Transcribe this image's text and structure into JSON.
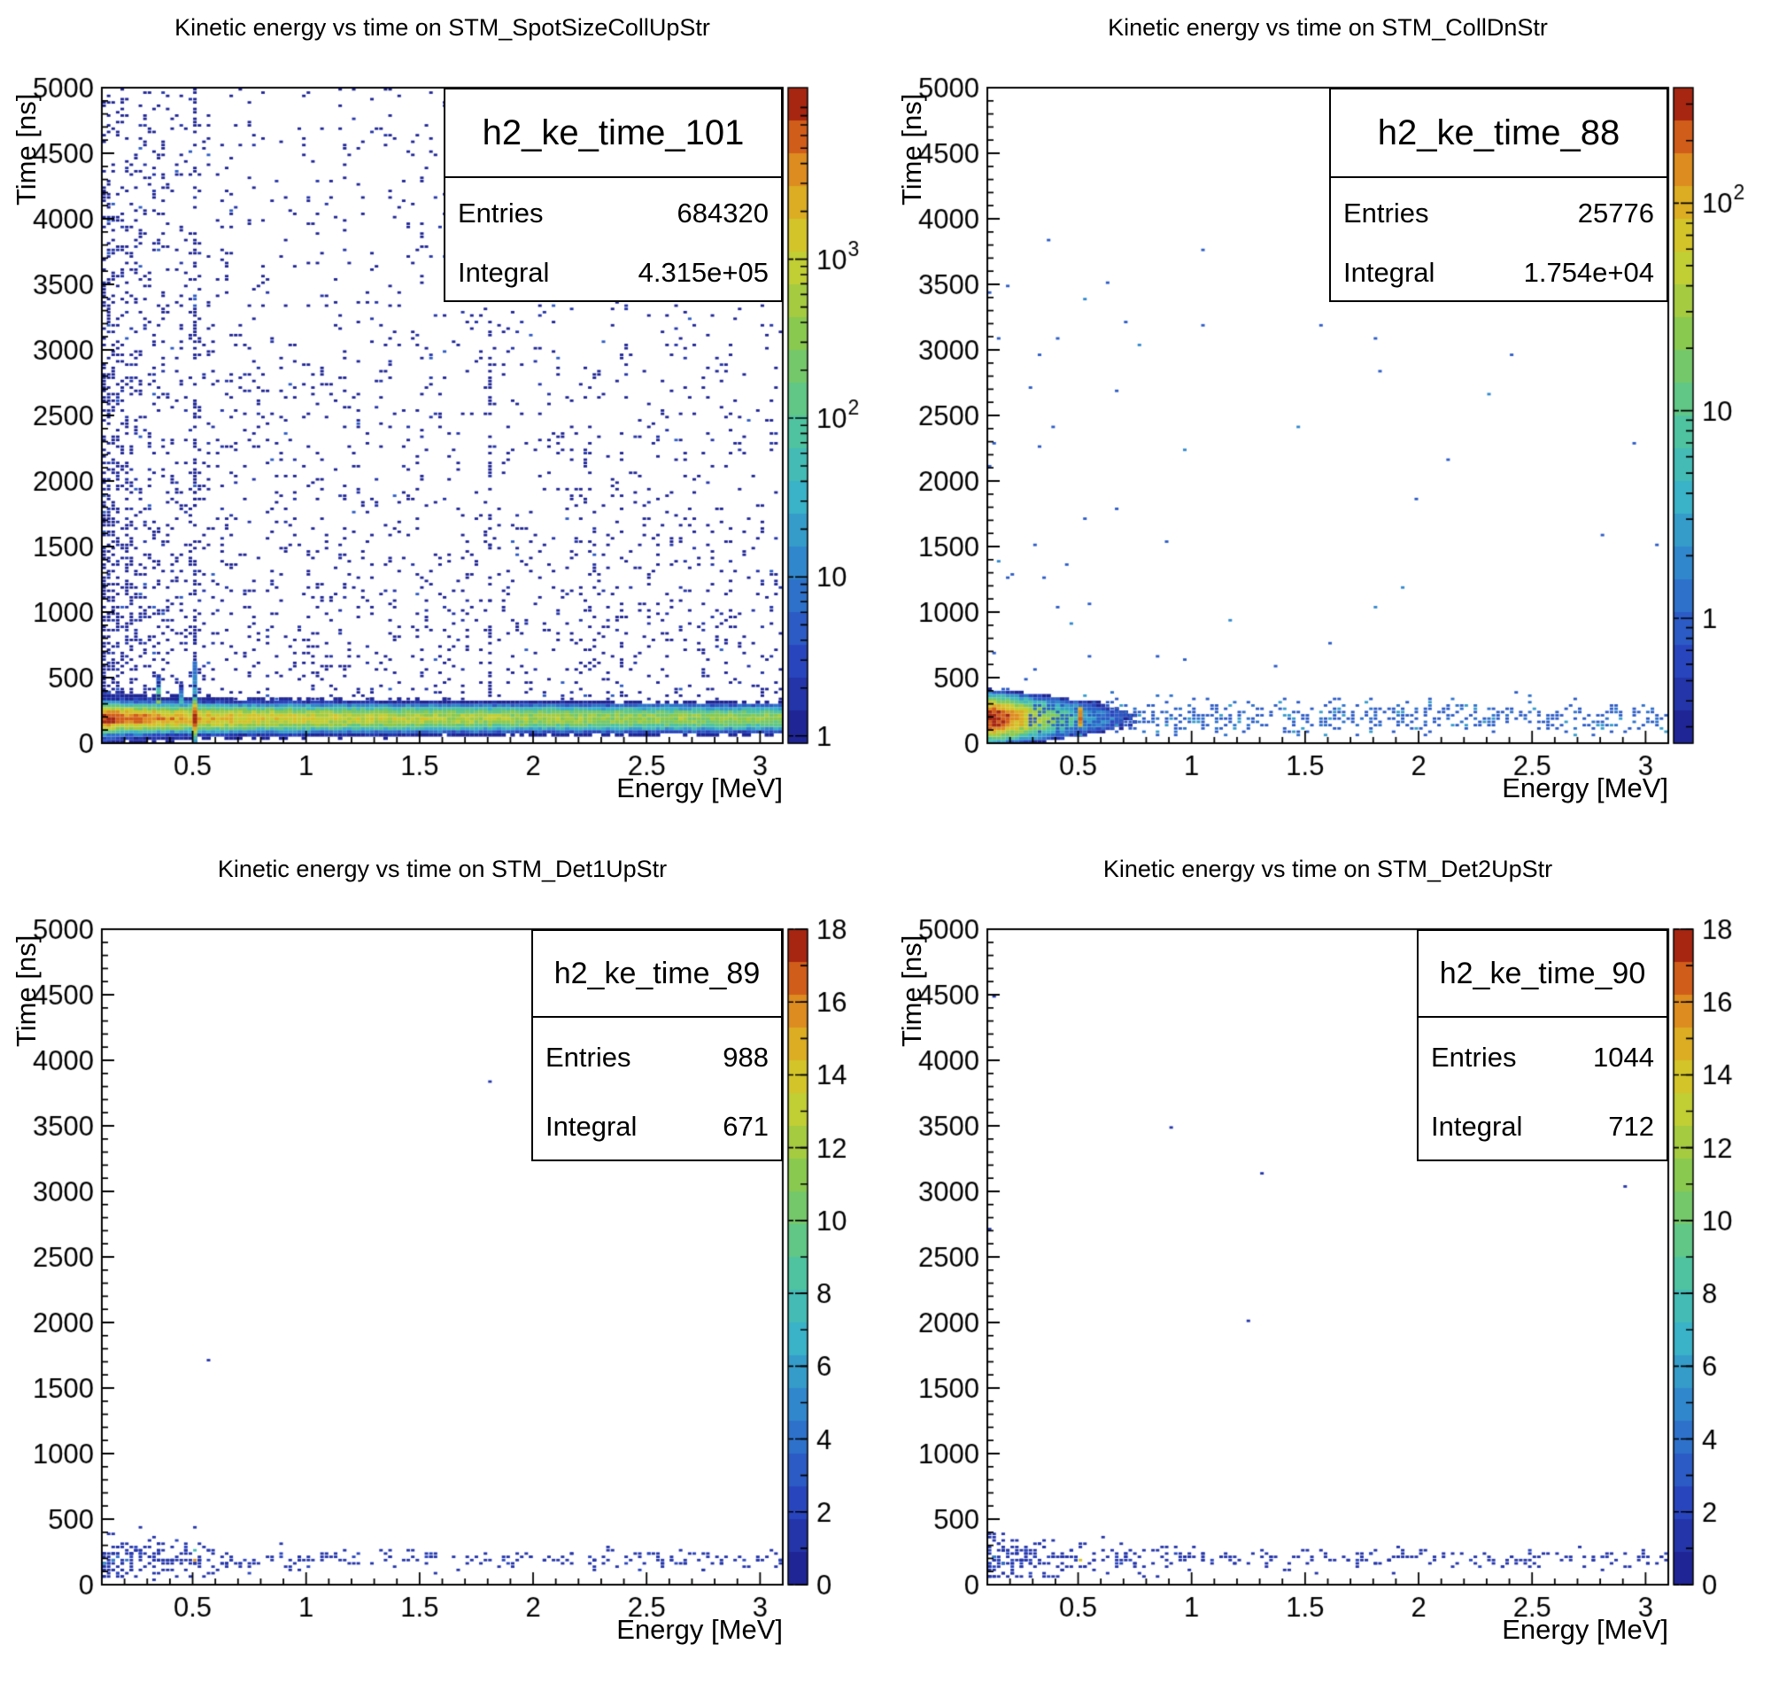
{
  "figure": {
    "background": "#ffffff",
    "frame_color": "#000000",
    "text_color": "#000000",
    "palette_name": "root-rainbow",
    "palette_stops": [
      [
        0.0,
        "#1c1d8a"
      ],
      [
        0.13,
        "#2a47c0"
      ],
      [
        0.25,
        "#2f7ccd"
      ],
      [
        0.38,
        "#3ab4c8"
      ],
      [
        0.5,
        "#55c794"
      ],
      [
        0.63,
        "#8cc94c"
      ],
      [
        0.75,
        "#cfcf2e"
      ],
      [
        0.83,
        "#ddab22"
      ],
      [
        0.9,
        "#dd7a1d"
      ],
      [
        0.96,
        "#c03515"
      ],
      [
        1.0,
        "#7a0e0c"
      ]
    ],
    "n_contour_levels": 20
  },
  "chart_data": [
    {
      "id": "top_left",
      "type": "heatmap",
      "title": "Kinetic energy vs time on STM_SpotSizeCollUpStr",
      "hist_name": "h2_ke_time_101",
      "stats": {
        "entries_label": "Entries",
        "entries": "684320",
        "integral_label": "Integral",
        "integral": "4.315e+05"
      },
      "x_axis": {
        "title": "Energy [MeV]",
        "min": 0.1,
        "max": 3.1,
        "tick_values": [
          0.5,
          1,
          1.5,
          2,
          2.5,
          3
        ],
        "tick_labels": [
          "0.5",
          "1",
          "1.5",
          "2",
          "2.5",
          "3"
        ],
        "minor_step": 0.1
      },
      "y_axis": {
        "title": "Time [ns]",
        "min": 0,
        "max": 5000,
        "tick_values": [
          0,
          500,
          1000,
          1500,
          2000,
          2500,
          3000,
          3500,
          4000,
          4500,
          5000
        ],
        "tick_labels": [
          "0",
          "500",
          "1000",
          "1500",
          "2000",
          "2500",
          "3000",
          "3500",
          "4000",
          "4500",
          "5000"
        ],
        "minor_step": 100
      },
      "z_axis": {
        "scale": "log",
        "min": 0.9,
        "max": 12000,
        "tick_labels": [
          {
            "text": "1",
            "value": 1
          },
          {
            "text": "10",
            "value": 10
          },
          {
            "text": "10",
            "sup": "2",
            "value": 100
          },
          {
            "text": "10",
            "sup": "3",
            "value": 1000
          }
        ]
      },
      "content": {
        "type": "dense-band",
        "seed": 11,
        "band": {
          "t_center_ns": 190,
          "t_sigma_ns": 33,
          "peak_coeff": 1100,
          "peak_exponent": -1.05,
          "peak_cap": 11500,
          "tail_frac": 0.004,
          "tail_sigma_ns": 70
        },
        "vertical_lines": [
          {
            "energy_mev": 0.511,
            "kind": "annihilation-line",
            "core_amp": 12000,
            "core_sigma_ns": 45,
            "mid_amp": 40,
            "mid_sigma_ns": 130,
            "fade_amp": 30,
            "dash_prob": 0.45
          },
          {
            "energy_mev": 0.35,
            "kind": "spike",
            "amp": 900,
            "sigma_ns": 90
          },
          {
            "energy_mev": 0.445,
            "kind": "spike",
            "amp": 150,
            "sigma_ns": 80
          },
          {
            "energy_mev": 1.8,
            "kind": "dashed",
            "dash_prob": 0.3,
            "t_max_ns": 4200,
            "value": 1
          }
        ],
        "scatter": {
          "p_base": 0.07,
          "e_boost": 6,
          "e_scale": 0.18,
          "t_base": 0.5,
          "t_amp": 1.3,
          "t_scale": 2200,
          "t_min_ns": 340
        }
      }
    },
    {
      "id": "top_right",
      "type": "heatmap",
      "title": "Kinetic energy vs time on STM_CollDnStr",
      "hist_name": "h2_ke_time_88",
      "stats": {
        "entries_label": "Entries",
        "entries": "25776",
        "integral_label": "Integral",
        "integral": "1.754e+04"
      },
      "x_axis": {
        "title": "Energy [MeV]",
        "min": 0.1,
        "max": 3.1,
        "tick_values": [
          0.5,
          1,
          1.5,
          2,
          2.5,
          3
        ],
        "tick_labels": [
          "0.5",
          "1",
          "1.5",
          "2",
          "2.5",
          "3"
        ],
        "minor_step": 0.1
      },
      "y_axis": {
        "title": "Time [ns]",
        "min": 0,
        "max": 5000,
        "tick_values": [
          0,
          500,
          1000,
          1500,
          2000,
          2500,
          3000,
          3500,
          4000,
          4500,
          5000
        ],
        "tick_labels": [
          "0",
          "500",
          "1000",
          "1500",
          "2000",
          "2500",
          "3000",
          "3500",
          "4000",
          "4500",
          "5000"
        ],
        "minor_step": 100
      },
      "z_axis": {
        "scale": "log",
        "min": 0.25,
        "max": 360,
        "tick_labels": [
          {
            "text": "1",
            "value": 1
          },
          {
            "text": "10",
            "value": 10
          },
          {
            "text": "10",
            "sup": "2",
            "value": 100
          }
        ]
      },
      "content": {
        "type": "blob-band",
        "seed": 7,
        "blob": {
          "e_edge": 0.13,
          "e_scale": 0.085,
          "amp": 420,
          "t_center_ns": 190,
          "t_sigma_ns": 58,
          "e_max": 0.8
        },
        "band_dots": {
          "e_min": 0.3,
          "p_base": 0.22,
          "p_amp": 0.3,
          "e_scale": 1.3,
          "t_center_ns": 200,
          "t_sigma_ns": 70,
          "t_lo": 60,
          "t_hi": 420
        },
        "red_tick": {
          "energy_mev": 0.511,
          "amp": 160,
          "sigma_ns": 50,
          "t_lo": 130,
          "t_hi": 270
        },
        "scatter": {
          "p_base": 0.0018,
          "e_boost": 8,
          "e_scale": 0.12,
          "t_base": 0.4,
          "t_amp": 1.0,
          "t_scale": 2600,
          "t_min_ns": 350
        }
      }
    },
    {
      "id": "bottom_left",
      "type": "heatmap",
      "title": "Kinetic energy vs time on STM_Det1UpStr",
      "hist_name": "h2_ke_time_89",
      "stats": {
        "entries_label": "Entries",
        "entries": "988",
        "integral_label": "Integral",
        "integral": "671"
      },
      "x_axis": {
        "title": "Energy [MeV]",
        "min": 0.1,
        "max": 3.1,
        "tick_values": [
          0.5,
          1,
          1.5,
          2,
          2.5,
          3
        ],
        "tick_labels": [
          "0.5",
          "1",
          "1.5",
          "2",
          "2.5",
          "3"
        ],
        "minor_step": 0.1
      },
      "y_axis": {
        "title": "Time [ns]",
        "min": 0,
        "max": 5000,
        "tick_values": [
          0,
          500,
          1000,
          1500,
          2000,
          2500,
          3000,
          3500,
          4000,
          4500,
          5000
        ],
        "tick_labels": [
          "0",
          "500",
          "1000",
          "1500",
          "2000",
          "2500",
          "3000",
          "3500",
          "4000",
          "4500",
          "5000"
        ],
        "minor_step": 100
      },
      "z_axis": {
        "scale": "linear",
        "min": 0,
        "max": 18,
        "major_step": 2,
        "minor_step": 1,
        "tick_labels": [
          {
            "text": "18",
            "value": 18
          },
          {
            "text": "16",
            "value": 16
          },
          {
            "text": "14",
            "value": 14
          },
          {
            "text": "12",
            "value": 12
          },
          {
            "text": "10",
            "value": 10
          },
          {
            "text": "8",
            "value": 8
          },
          {
            "text": "6",
            "value": 6
          },
          {
            "text": "4",
            "value": 4
          },
          {
            "text": "2",
            "value": 2
          },
          {
            "text": "0",
            "value": 0
          }
        ]
      },
      "content": {
        "type": "sparse-band",
        "seed": 3,
        "band_dots": {
          "p_coeff": 0.85,
          "e_scale": 0.3,
          "p_floor": 0.09,
          "attempts": 14,
          "t_center_ns": 195,
          "sigma_coeff": 70,
          "sigma_scale": 0.5,
          "sigma_floor": 38,
          "t_lo": 50,
          "t_hi": 380
        },
        "special_points": [
          {
            "energy_mev": 0.511,
            "t_ns": 190,
            "value": 16
          },
          {
            "energy_mev": 0.5,
            "t_ns": 250,
            "value": 8
          },
          {
            "energy_mev": 0.14,
            "t_ns": 185,
            "value": 5
          },
          {
            "energy_mev": 0.12,
            "t_ns": 160,
            "value": 6
          },
          {
            "energy_mev": 0.17,
            "t_ns": 215,
            "value": 4
          },
          {
            "energy_mev": 0.2,
            "t_ns": 190,
            "value": 4
          }
        ],
        "isolated_points": [
          {
            "energy_mev": 1.8,
            "t_ns": 3830,
            "value": 1
          },
          {
            "energy_mev": 0.57,
            "t_ns": 1700,
            "value": 1
          },
          {
            "energy_mev": 0.27,
            "t_ns": 430,
            "value": 1
          },
          {
            "energy_mev": 0.5,
            "t_ns": 445,
            "value": 1
          },
          {
            "energy_mev": 0.33,
            "t_ns": 40,
            "value": 1
          }
        ]
      }
    },
    {
      "id": "bottom_right",
      "type": "heatmap",
      "title": "Kinetic energy vs time on STM_Det2UpStr",
      "hist_name": "h2_ke_time_90",
      "stats": {
        "entries_label": "Entries",
        "entries": "1044",
        "integral_label": "Integral",
        "integral": "712"
      },
      "x_axis": {
        "title": "Energy [MeV]",
        "min": 0.1,
        "max": 3.1,
        "tick_values": [
          0.5,
          1,
          1.5,
          2,
          2.5,
          3
        ],
        "tick_labels": [
          "0.5",
          "1",
          "1.5",
          "2",
          "2.5",
          "3"
        ],
        "minor_step": 0.1
      },
      "y_axis": {
        "title": "Time [ns]",
        "min": 0,
        "max": 5000,
        "tick_values": [
          0,
          500,
          1000,
          1500,
          2000,
          2500,
          3000,
          3500,
          4000,
          4500,
          5000
        ],
        "tick_labels": [
          "0",
          "500",
          "1000",
          "1500",
          "2000",
          "2500",
          "3000",
          "3500",
          "4000",
          "4500",
          "5000"
        ],
        "minor_step": 100
      },
      "z_axis": {
        "scale": "linear",
        "min": 0,
        "max": 18,
        "major_step": 2,
        "minor_step": 1,
        "tick_labels": [
          {
            "text": "18",
            "value": 18
          },
          {
            "text": "16",
            "value": 16
          },
          {
            "text": "14",
            "value": 14
          },
          {
            "text": "12",
            "value": 12
          },
          {
            "text": "10",
            "value": 10
          },
          {
            "text": "8",
            "value": 8
          },
          {
            "text": "6",
            "value": 6
          },
          {
            "text": "4",
            "value": 4
          },
          {
            "text": "2",
            "value": 2
          },
          {
            "text": "0",
            "value": 0
          }
        ]
      },
      "content": {
        "type": "sparse-band",
        "seed": 5,
        "band_dots": {
          "p_coeff": 0.9,
          "e_scale": 0.3,
          "p_floor": 0.095,
          "attempts": 15,
          "t_center_ns": 195,
          "sigma_coeff": 70,
          "sigma_scale": 0.5,
          "sigma_floor": 38,
          "t_lo": 50,
          "t_hi": 380
        },
        "special_points": [
          {
            "energy_mev": 0.511,
            "t_ns": 190,
            "value": 14
          },
          {
            "energy_mev": 0.13,
            "t_ns": 200,
            "value": 5
          },
          {
            "energy_mev": 0.16,
            "t_ns": 170,
            "value": 4
          }
        ],
        "isolated_points": [
          {
            "energy_mev": 0.9,
            "t_ns": 3480,
            "value": 1
          },
          {
            "energy_mev": 1.3,
            "t_ns": 3140,
            "value": 1
          },
          {
            "energy_mev": 1.25,
            "t_ns": 2020,
            "value": 1
          },
          {
            "energy_mev": 2.9,
            "t_ns": 3040,
            "value": 1
          },
          {
            "energy_mev": 0.13,
            "t_ns": 4490,
            "value": 1
          },
          {
            "energy_mev": 0.12,
            "t_ns": 2700,
            "value": 1
          }
        ]
      }
    }
  ]
}
